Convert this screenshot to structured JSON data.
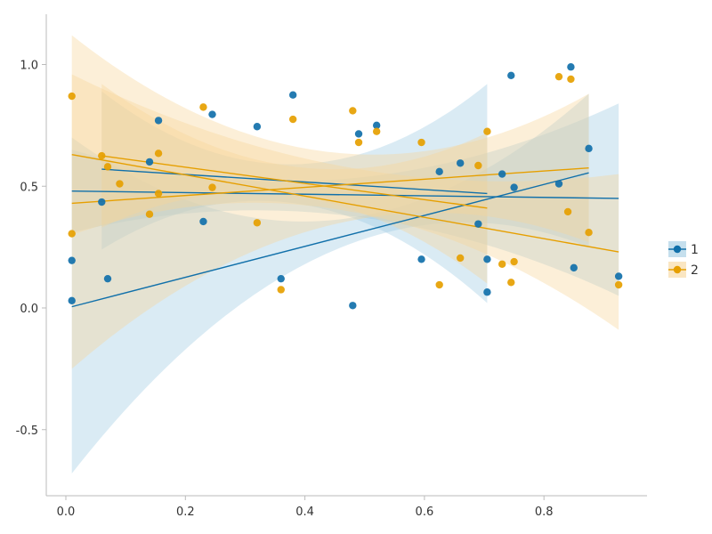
{
  "chart_data": {
    "type": "scatter",
    "xlim": [
      -0.03,
      0.97
    ],
    "ylim": [
      -0.78,
      1.2
    ],
    "x_ticks": [
      0.0,
      0.2,
      0.4,
      0.6,
      0.8
    ],
    "x_tick_labels": [
      "0.0",
      "0.2",
      "0.4",
      "0.6",
      "0.8"
    ],
    "y_ticks": [
      -0.5,
      0.0,
      0.5,
      1.0
    ],
    "y_tick_labels": [
      "-0.5",
      "0.0",
      "0.5",
      "1.0"
    ],
    "grid": false,
    "legend_position": "right",
    "series": [
      {
        "name": "1",
        "color": "#1170aa",
        "band_color": "#9ecae1",
        "points": [
          [
            0.01,
            0.03
          ],
          [
            0.01,
            0.195
          ],
          [
            0.07,
            0.12
          ],
          [
            0.06,
            0.435
          ],
          [
            0.14,
            0.6
          ],
          [
            0.155,
            0.77
          ],
          [
            0.23,
            0.355
          ],
          [
            0.245,
            0.795
          ],
          [
            0.32,
            0.745
          ],
          [
            0.36,
            0.12
          ],
          [
            0.38,
            0.875
          ],
          [
            0.48,
            0.01
          ],
          [
            0.49,
            0.715
          ],
          [
            0.52,
            0.75
          ],
          [
            0.595,
            0.2
          ],
          [
            0.625,
            0.56
          ],
          [
            0.66,
            0.595
          ],
          [
            0.69,
            0.345
          ],
          [
            0.705,
            0.2
          ],
          [
            0.705,
            0.065
          ],
          [
            0.73,
            0.55
          ],
          [
            0.745,
            0.955
          ],
          [
            0.75,
            0.495
          ],
          [
            0.825,
            0.51
          ],
          [
            0.845,
            0.99
          ],
          [
            0.85,
            0.165
          ],
          [
            0.875,
            0.655
          ],
          [
            0.925,
            0.13
          ]
        ],
        "fits": [
          {
            "x": [
              0.01,
              0.875
            ],
            "y": [
              0.005,
              0.555
            ],
            "band_lower": [
              -0.68,
              0.25
            ],
            "band_upper": [
              0.7,
              0.88
            ],
            "band_mid_lower": 0.23,
            "band_mid_upper": 0.36
          },
          {
            "x": [
              0.01,
              0.925
            ],
            "y": [
              0.48,
              0.45
            ],
            "band_lower": [
              0.31,
              0.05
            ],
            "band_upper": [
              0.65,
              0.84
            ],
            "band_mid_lower": 0.38,
            "band_mid_upper": 0.53
          },
          {
            "x": [
              0.06,
              0.705
            ],
            "y": [
              0.57,
              0.47
            ],
            "band_lower": [
              0.24,
              0.02
            ],
            "band_upper": [
              0.89,
              0.92
            ],
            "band_mid_lower": 0.43,
            "band_mid_upper": 0.59
          }
        ]
      },
      {
        "name": "2",
        "color": "#e69f00",
        "band_color": "#f7d699",
        "points": [
          [
            0.01,
            0.87
          ],
          [
            0.01,
            0.305
          ],
          [
            0.06,
            0.625
          ],
          [
            0.07,
            0.58
          ],
          [
            0.09,
            0.51
          ],
          [
            0.14,
            0.385
          ],
          [
            0.155,
            0.635
          ],
          [
            0.155,
            0.47
          ],
          [
            0.23,
            0.825
          ],
          [
            0.245,
            0.495
          ],
          [
            0.32,
            0.35
          ],
          [
            0.36,
            0.075
          ],
          [
            0.38,
            0.775
          ],
          [
            0.48,
            0.81
          ],
          [
            0.49,
            0.68
          ],
          [
            0.52,
            0.725
          ],
          [
            0.595,
            0.68
          ],
          [
            0.625,
            0.095
          ],
          [
            0.66,
            0.205
          ],
          [
            0.69,
            0.585
          ],
          [
            0.705,
            0.725
          ],
          [
            0.73,
            0.18
          ],
          [
            0.745,
            0.105
          ],
          [
            0.75,
            0.19
          ],
          [
            0.825,
            0.95
          ],
          [
            0.84,
            0.395
          ],
          [
            0.845,
            0.94
          ],
          [
            0.875,
            0.31
          ],
          [
            0.925,
            0.095
          ]
        ],
        "fits": [
          {
            "x": [
              0.01,
              0.925
            ],
            "y": [
              0.63,
              0.23
            ],
            "band_lower": [
              0.3,
              -0.09
            ],
            "band_upper": [
              0.96,
              0.55
            ],
            "band_mid_lower": 0.4,
            "band_mid_upper": 0.58
          },
          {
            "x": [
              0.01,
              0.875
            ],
            "y": [
              0.43,
              0.575
            ],
            "band_lower": [
              -0.25,
              0.27
            ],
            "band_upper": [
              1.12,
              0.88
            ],
            "band_mid_lower": 0.34,
            "band_mid_upper": 0.64
          },
          {
            "x": [
              0.06,
              0.705
            ],
            "y": [
              0.625,
              0.41
            ],
            "band_lower": [
              0.33,
              0.1
            ],
            "band_upper": [
              0.92,
              0.72
            ],
            "band_mid_lower": 0.46,
            "band_mid_upper": 0.58
          }
        ]
      }
    ]
  }
}
